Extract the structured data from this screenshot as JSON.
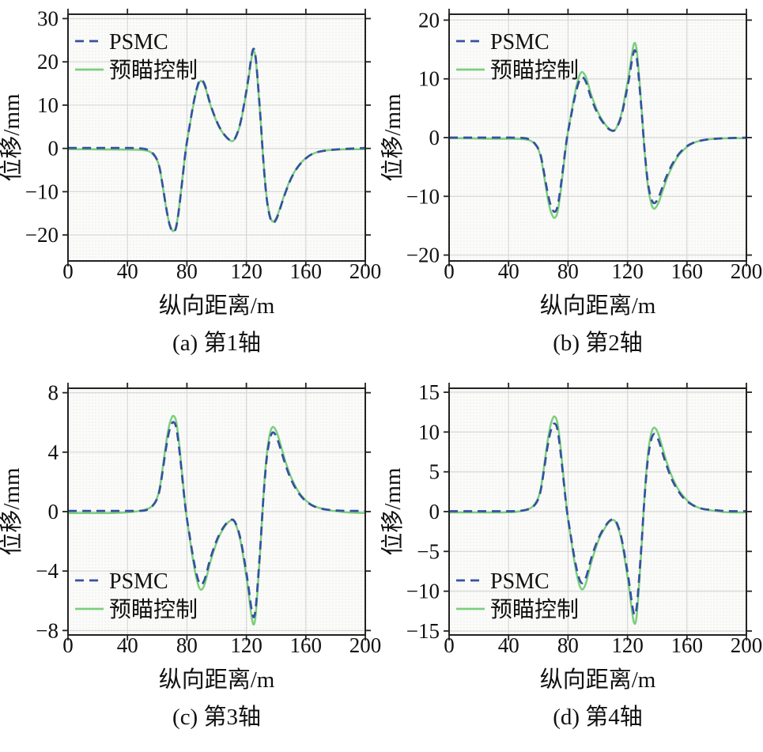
{
  "figure": {
    "colors": {
      "psmc": "#35519f",
      "preview": "#7bcf7d",
      "axis": "#222222",
      "grid": "#d8d8d8",
      "text": "#111111",
      "plot_bg": "#fbfbfa",
      "plot_dot": "#e9e9e4"
    }
  },
  "chart_data": [
    {
      "type": "line",
      "caption": "(a) 第1轴",
      "xlabel": "纵向距离/m",
      "ylabel": "位移/mm",
      "xlim": [
        0,
        200
      ],
      "ylim": [
        -26,
        31
      ],
      "xticks": [
        0,
        40,
        80,
        120,
        160,
        200
      ],
      "yticks": [
        -20,
        -10,
        0,
        10,
        20,
        30
      ],
      "grid": true,
      "legend_position": "top-left",
      "x": [
        0,
        12,
        24,
        36,
        46,
        52,
        56,
        60,
        62,
        64,
        66,
        68,
        70,
        71,
        72.5,
        74,
        76.5,
        79,
        82,
        84.5,
        87,
        89,
        91,
        93,
        95,
        98,
        101,
        104,
        107,
        109,
        111,
        113,
        116,
        119,
        121,
        123,
        124.5,
        126,
        128,
        129.5,
        131,
        132.5,
        134,
        136,
        137.5,
        139,
        141,
        144,
        147,
        150,
        154,
        158,
        162,
        166,
        171,
        178,
        186,
        200
      ],
      "series": [
        {
          "name": "PSMC",
          "color_key": "psmc",
          "style": "dashed",
          "values": [
            0.1,
            0.1,
            0.1,
            0.1,
            0.1,
            -0.1,
            -0.6,
            -2.4,
            -4.9,
            -9.2,
            -13.7,
            -17.4,
            -19.2,
            -19.4,
            -18.8,
            -16,
            -8.7,
            -0.6,
            5.6,
            10.7,
            14.5,
            16.1,
            15.6,
            13.8,
            11,
            8,
            5.4,
            3.7,
            2.4,
            1.9,
            1.7,
            2.6,
            5.6,
            11.2,
            15.3,
            20.4,
            23.4,
            22.4,
            14.3,
            7.1,
            -1,
            -7.7,
            -12.8,
            -16.3,
            -17.3,
            -17.1,
            -15.8,
            -12.5,
            -9.5,
            -6.9,
            -4.5,
            -2.9,
            -1.7,
            -1,
            -0.6,
            -0.3,
            -0.1,
            0.1
          ]
        },
        {
          "name": "预瞄控制",
          "color_key": "preview",
          "style": "solid",
          "values": [
            -0.2,
            -0.2,
            -0.25,
            -0.25,
            -0.3,
            -0.4,
            -0.8,
            -2.5,
            -5,
            -9.3,
            -13.8,
            -17.3,
            -19,
            -19.2,
            -18.6,
            -15.8,
            -8.5,
            -0.5,
            5.5,
            10.5,
            14.2,
            15.8,
            15.3,
            13.5,
            10.8,
            7.8,
            5.3,
            3.6,
            2.3,
            1.8,
            1.6,
            2.5,
            5.5,
            11,
            15,
            20,
            22.9,
            22,
            14,
            7,
            -1,
            -7.5,
            -12.5,
            -16,
            -17,
            -16.8,
            -15.5,
            -12.3,
            -9.3,
            -6.8,
            -4.4,
            -2.8,
            -1.7,
            -1,
            -0.55,
            -0.3,
            -0.2,
            -0.2
          ]
        }
      ]
    },
    {
      "type": "line",
      "caption": "(b) 第2轴",
      "xlabel": "纵向距离/m",
      "ylabel": "位移/mm",
      "xlim": [
        0,
        200
      ],
      "ylim": [
        -21,
        21
      ],
      "xticks": [
        0,
        40,
        80,
        120,
        160,
        200
      ],
      "yticks": [
        -20,
        -10,
        0,
        10,
        20
      ],
      "grid": true,
      "legend_position": "top-left",
      "x": [
        0,
        12,
        24,
        36,
        46,
        52,
        56,
        60,
        62,
        64,
        66,
        68,
        70,
        71,
        72.5,
        74,
        76.5,
        79,
        82,
        84.5,
        87,
        89,
        91,
        93,
        95,
        98,
        101,
        104,
        107,
        109,
        111,
        113,
        116,
        119,
        121,
        123,
        124.5,
        126,
        128,
        129.5,
        131,
        132.5,
        134,
        136,
        137.5,
        139,
        141,
        144,
        147,
        150,
        154,
        158,
        162,
        166,
        171,
        178,
        186,
        200
      ],
      "series": [
        {
          "name": "PSMC",
          "color_key": "psmc",
          "style": "dashed",
          "values": [
            0,
            0,
            0,
            0,
            0,
            -0.1,
            -0.5,
            -1.7,
            -3.3,
            -6.1,
            -9.1,
            -11.4,
            -12.5,
            -12.7,
            -12.3,
            -10.4,
            -5.6,
            -0.3,
            3.6,
            6.9,
            9.4,
            10.4,
            10.1,
            8.9,
            7.1,
            5.1,
            3.5,
            2.4,
            1.5,
            1.2,
            1.1,
            1.7,
            3.6,
            7.3,
            9.9,
            13.2,
            15.1,
            14.5,
            9.2,
            4.6,
            -0.7,
            -5,
            -8.3,
            -10.6,
            -11.2,
            -11.1,
            -10.2,
            -8.1,
            -6.1,
            -4.5,
            -2.9,
            -1.8,
            -1.1,
            -0.7,
            -0.4,
            -0.2,
            -0.1,
            0
          ]
        },
        {
          "name": "预瞄控制",
          "color_key": "preview",
          "style": "solid",
          "values": [
            -0.1,
            -0.1,
            -0.2,
            -0.2,
            -0.2,
            -0.3,
            -0.6,
            -1.8,
            -3.6,
            -6.6,
            -9.9,
            -12.4,
            -13.6,
            -13.7,
            -13.3,
            -11.3,
            -6.1,
            -0.4,
            3.9,
            7.5,
            10.2,
            11.3,
            10.9,
            9.7,
            7.7,
            5.6,
            3.8,
            2.6,
            1.6,
            1.3,
            1.1,
            1.8,
            3.9,
            7.9,
            10.7,
            14.3,
            16.4,
            15.7,
            10,
            5,
            -0.7,
            -5.4,
            -8.9,
            -11.4,
            -12.2,
            -12,
            -11.1,
            -8.8,
            -6.6,
            -4.9,
            -3.1,
            -2,
            -1.2,
            -0.7,
            -0.4,
            -0.2,
            -0.1,
            -0.1
          ]
        }
      ]
    },
    {
      "type": "line",
      "caption": "(c) 第3轴",
      "xlabel": "纵向距离/m",
      "ylabel": "位移/mm",
      "xlim": [
        0,
        200
      ],
      "ylim": [
        -8.3,
        8.3
      ],
      "xticks": [
        0,
        40,
        80,
        120,
        160,
        200
      ],
      "yticks": [
        -8,
        -4,
        0,
        4,
        8
      ],
      "grid": true,
      "legend_position": "bottom-left",
      "x": [
        0,
        12,
        24,
        36,
        46,
        52,
        56,
        60,
        62,
        64,
        66,
        68,
        70,
        71,
        72.5,
        74,
        76.5,
        79,
        82,
        84.5,
        87,
        89,
        91,
        93,
        95,
        98,
        101,
        104,
        107,
        109,
        111,
        113,
        116,
        119,
        121,
        123,
        124.5,
        126,
        128,
        129.5,
        131,
        132.5,
        134,
        136,
        137.5,
        139,
        141,
        144,
        147,
        150,
        154,
        158,
        162,
        166,
        171,
        178,
        186,
        200
      ],
      "series": [
        {
          "name": "PSMC",
          "color_key": "psmc",
          "style": "dashed",
          "values": [
            0.05,
            0.05,
            0.05,
            0.05,
            0.05,
            0.06,
            0.25,
            0.79,
            1.58,
            2.93,
            4.35,
            5.45,
            5.99,
            6.05,
            5.86,
            4.98,
            2.68,
            0.16,
            -1.73,
            -3.31,
            -4.47,
            -4.98,
            -4.82,
            -4.25,
            -3.4,
            -2.46,
            -1.67,
            -1.13,
            -0.72,
            -0.57,
            -0.5,
            -0.79,
            -1.73,
            -3.47,
            -4.73,
            -6.3,
            -7.21,
            -6.93,
            -4.41,
            -2.24,
            0.32,
            2.36,
            3.94,
            5.04,
            5.36,
            5.29,
            4.88,
            3.88,
            2.93,
            2.14,
            1.39,
            0.88,
            0.54,
            0.32,
            0.17,
            0.09,
            0.05,
            0.05
          ]
        },
        {
          "name": "预瞄控制",
          "color_key": "preview",
          "style": "solid",
          "values": [
            -0.1,
            -0.1,
            -0.1,
            -0.08,
            0,
            0.13,
            0.27,
            0.84,
            1.69,
            3.13,
            4.65,
            5.83,
            6.4,
            6.47,
            6.27,
            5.32,
            2.86,
            0.17,
            -1.85,
            -3.54,
            -4.79,
            -5.32,
            -5.16,
            -4.55,
            -3.64,
            -2.63,
            -1.79,
            -1.21,
            -0.78,
            -0.61,
            -0.54,
            -0.84,
            -1.85,
            -3.71,
            -5.06,
            -6.74,
            -7.72,
            -7.41,
            -4.72,
            -2.36,
            0.34,
            2.53,
            4.21,
            5.39,
            5.73,
            5.66,
            5.22,
            4.15,
            3.13,
            2.29,
            1.48,
            0.94,
            0.57,
            0.34,
            0.19,
            0.05,
            -0.05,
            -0.1
          ]
        }
      ]
    },
    {
      "type": "line",
      "caption": "(d) 第4轴",
      "xlabel": "纵向距离/m",
      "ylabel": "位移/mm",
      "xlim": [
        0,
        200
      ],
      "ylim": [
        -15.5,
        15.5
      ],
      "xticks": [
        0,
        40,
        80,
        120,
        160,
        200
      ],
      "yticks": [
        -15,
        -10,
        -5,
        0,
        5,
        10,
        15
      ],
      "grid": true,
      "legend_position": "bottom-left",
      "x": [
        0,
        12,
        24,
        36,
        46,
        52,
        56,
        60,
        62,
        64,
        66,
        68,
        70,
        71,
        72.5,
        74,
        76.5,
        79,
        82,
        84.5,
        87,
        89,
        91,
        93,
        95,
        98,
        101,
        104,
        107,
        109,
        111,
        113,
        116,
        119,
        121,
        123,
        124.5,
        126,
        128,
        129.5,
        131,
        132.5,
        134,
        136,
        137.5,
        139,
        141,
        144,
        147,
        150,
        154,
        158,
        162,
        166,
        171,
        178,
        186,
        200
      ],
      "series": [
        {
          "name": "PSMC",
          "color_key": "psmc",
          "style": "dashed",
          "values": [
            0.05,
            0.05,
            0.05,
            0.05,
            0.05,
            0.2,
            0.45,
            1.4,
            2.9,
            5.4,
            8,
            10,
            11,
            11.1,
            10.8,
            9.1,
            4.9,
            0.3,
            -3.2,
            -6.1,
            -8.2,
            -9.1,
            -8.8,
            -7.8,
            -6.2,
            -4.5,
            -3.1,
            -2.1,
            -1.3,
            -1,
            -0.9,
            -1.4,
            -3.2,
            -6.4,
            -8.7,
            -11.6,
            -13.2,
            -12.7,
            -8.1,
            -4,
            0.6,
            4.3,
            7.2,
            9.2,
            9.8,
            9.7,
            9,
            7.1,
            5.4,
            3.9,
            2.6,
            1.6,
            1,
            0.6,
            0.3,
            0.2,
            0.05,
            0.05
          ]
        },
        {
          "name": "预瞄控制",
          "color_key": "preview",
          "style": "solid",
          "values": [
            -0.1,
            -0.1,
            -0.1,
            -0.1,
            -0.05,
            0.25,
            0.5,
            1.6,
            3.1,
            5.8,
            8.6,
            10.8,
            11.9,
            12,
            11.6,
            9.9,
            5.3,
            0.3,
            -3.4,
            -6.6,
            -8.9,
            -9.9,
            -9.6,
            -8.4,
            -6.8,
            -4.9,
            -3.3,
            -2.3,
            -1.4,
            -1.1,
            -1,
            -1.6,
            -3.4,
            -6.9,
            -9.4,
            -12.5,
            -14.3,
            -13.8,
            -8.8,
            -4.4,
            0.6,
            4.7,
            7.8,
            10,
            10.6,
            10.5,
            9.7,
            7.7,
            5.8,
            4.3,
            2.8,
            1.8,
            1.1,
            0.6,
            0.3,
            0.1,
            -0.1,
            -0.1
          ]
        }
      ]
    }
  ]
}
